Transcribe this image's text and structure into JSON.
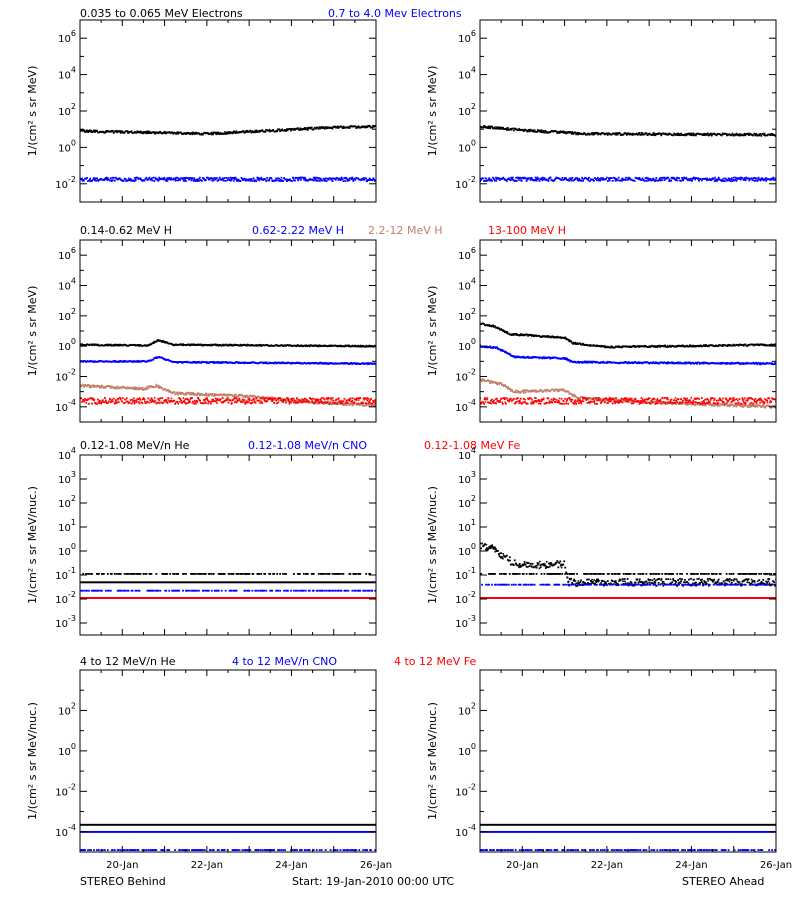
{
  "colors": {
    "black": "#000000",
    "blue": "#0000ff",
    "tan": "#c0806a",
    "red": "#ff0000"
  },
  "rows": [
    {
      "legend": [
        {
          "text": "0.035 to 0.065 MeV Electrons",
          "color": "#000000"
        },
        {
          "text": "0.7 to 4.0 Mev Electrons",
          "color": "#0000ff"
        }
      ],
      "ylabel": "1/(cm² s sr MeV)"
    },
    {
      "legend": [
        {
          "text": "0.14-0.62 MeV H",
          "color": "#000000"
        },
        {
          "text": "0.62-2.22 MeV H",
          "color": "#0000ff"
        },
        {
          "text": "2.2-12 MeV H",
          "color": "#c0806a"
        },
        {
          "text": "13-100 MeV H",
          "color": "#ff0000"
        }
      ],
      "ylabel": "1/(cm² s sr MeV)"
    },
    {
      "legend": [
        {
          "text": "0.12-1.08 MeV/n He",
          "color": "#000000"
        },
        {
          "text": "0.12-1.08 MeV/n CNO",
          "color": "#0000ff"
        },
        {
          "text": "0.12-1.08 MeV Fe",
          "color": "#ff0000"
        }
      ],
      "ylabel": "1/(cm² s sr MeV/nuc.)"
    },
    {
      "legend": [
        {
          "text": "4 to 12 MeV/n He",
          "color": "#000000"
        },
        {
          "text": "4 to 12 MeV/n CNO",
          "color": "#0000ff"
        },
        {
          "text": "4 to 12 MeV Fe",
          "color": "#ff0000"
        }
      ],
      "ylabel": "1/(cm² s sr MeV/nuc.)"
    }
  ],
  "footer": {
    "left": "STEREO Behind",
    "center": "Start: 19-Jan-2010 00:00 UTC",
    "right": "STEREO Ahead"
  },
  "chart_data": [
    {
      "type": "scatter",
      "spacecraft": "STEREO Behind",
      "row": 0,
      "x_days": [
        0,
        7
      ],
      "xticks": [
        "20-Jan",
        "22-Jan",
        "24-Jan",
        "26-Jan"
      ],
      "ylog": true,
      "ylim_exp": [
        -3,
        7
      ],
      "yticks_exp": [
        -2,
        0,
        2,
        4,
        6
      ],
      "series": [
        {
          "name": "0.035 to 0.065 MeV Electrons",
          "color": "#000000",
          "levels": [
            [
              0,
              0.9
            ],
            [
              3,
              0.75
            ],
            [
              6,
              1.1
            ],
            [
              7,
              1.15
            ]
          ],
          "noise": 0.06
        },
        {
          "name": "0.7 to 4.0 Mev Electrons",
          "color": "#0000ff",
          "levels": [
            [
              0,
              -1.75
            ],
            [
              7,
              -1.75
            ]
          ],
          "noise": 0.1
        }
      ]
    },
    {
      "type": "scatter",
      "spacecraft": "STEREO Ahead",
      "row": 0,
      "x_days": [
        0,
        7
      ],
      "xticks": [
        "20-Jan",
        "22-Jan",
        "24-Jan",
        "26-Jan"
      ],
      "ylog": true,
      "ylim_exp": [
        -3,
        7
      ],
      "yticks_exp": [
        -2,
        0,
        2,
        4,
        6
      ],
      "series": [
        {
          "name": "0.035 to 0.065 MeV Electrons",
          "color": "#000000",
          "levels": [
            [
              0,
              1.15
            ],
            [
              1,
              0.95
            ],
            [
              2.5,
              0.75
            ],
            [
              7,
              0.7
            ]
          ],
          "noise": 0.06
        },
        {
          "name": "0.7 to 4.0 Mev Electrons",
          "color": "#0000ff",
          "levels": [
            [
              0,
              -1.75
            ],
            [
              7,
              -1.75
            ]
          ],
          "noise": 0.1
        }
      ]
    },
    {
      "type": "scatter",
      "spacecraft": "STEREO Behind",
      "row": 1,
      "x_days": [
        0,
        7
      ],
      "xticks": [
        "20-Jan",
        "22-Jan",
        "24-Jan",
        "26-Jan"
      ],
      "ylog": true,
      "ylim_exp": [
        -5,
        7
      ],
      "yticks_exp": [
        -4,
        -2,
        0,
        2,
        4,
        6
      ],
      "series": [
        {
          "name": "0.14-0.62 MeV H",
          "color": "#000000",
          "levels": [
            [
              0,
              0.1
            ],
            [
              1.6,
              0.05
            ],
            [
              1.85,
              0.4
            ],
            [
              2.2,
              0.1
            ],
            [
              7,
              0.0
            ]
          ],
          "noise": 0.04
        },
        {
          "name": "0.62-2.22 MeV H",
          "color": "#0000ff",
          "levels": [
            [
              0,
              -1.0
            ],
            [
              1.6,
              -1.0
            ],
            [
              1.85,
              -0.7
            ],
            [
              2.2,
              -1.05
            ],
            [
              7,
              -1.15
            ]
          ],
          "noise": 0.04
        },
        {
          "name": "2.2-12 MeV H",
          "color": "#c0806a",
          "levels": [
            [
              0,
              -2.6
            ],
            [
              1.5,
              -2.8
            ],
            [
              1.8,
              -2.6
            ],
            [
              2.2,
              -3.1
            ],
            [
              4,
              -3.3
            ],
            [
              5.5,
              -3.7
            ],
            [
              7,
              -3.9
            ]
          ],
          "noise": 0.08
        },
        {
          "name": "13-100 MeV H",
          "color": "#ff0000",
          "levels": [
            [
              0,
              -3.6
            ],
            [
              7,
              -3.6
            ]
          ],
          "noise": 0.2
        }
      ]
    },
    {
      "type": "scatter",
      "spacecraft": "STEREO Ahead",
      "row": 1,
      "x_days": [
        0,
        7
      ],
      "xticks": [
        "20-Jan",
        "22-Jan",
        "24-Jan",
        "26-Jan"
      ],
      "ylog": true,
      "ylim_exp": [
        -5,
        7
      ],
      "yticks_exp": [
        -4,
        -2,
        0,
        2,
        4,
        6
      ],
      "series": [
        {
          "name": "0.14-0.62 MeV H",
          "color": "#000000",
          "levels": [
            [
              0,
              1.5
            ],
            [
              0.35,
              1.3
            ],
            [
              0.7,
              0.8
            ],
            [
              1.5,
              0.65
            ],
            [
              2.0,
              0.55
            ],
            [
              2.2,
              0.2
            ],
            [
              3,
              -0.05
            ],
            [
              7,
              0.1
            ]
          ],
          "noise": 0.05
        },
        {
          "name": "0.62-2.22 MeV H",
          "color": "#0000ff",
          "levels": [
            [
              0,
              0.0
            ],
            [
              0.4,
              -0.1
            ],
            [
              0.8,
              -0.7
            ],
            [
              2.0,
              -0.8
            ],
            [
              2.2,
              -1.05
            ],
            [
              7,
              -1.15
            ]
          ],
          "noise": 0.05
        },
        {
          "name": "2.2-12 MeV H",
          "color": "#c0806a",
          "levels": [
            [
              0,
              -2.2
            ],
            [
              0.5,
              -2.5
            ],
            [
              0.8,
              -3.0
            ],
            [
              2.0,
              -2.9
            ],
            [
              2.3,
              -3.4
            ],
            [
              4,
              -3.7
            ],
            [
              7,
              -4.0
            ]
          ],
          "noise": 0.08
        },
        {
          "name": "13-100 MeV H",
          "color": "#ff0000",
          "levels": [
            [
              0,
              -3.6
            ],
            [
              7,
              -3.6
            ]
          ],
          "noise": 0.2
        }
      ]
    },
    {
      "type": "scatter",
      "spacecraft": "STEREO Behind",
      "row": 2,
      "x_days": [
        0,
        7
      ],
      "xticks": [
        "20-Jan",
        "22-Jan",
        "24-Jan",
        "26-Jan"
      ],
      "ylog": true,
      "ylim_exp": [
        -3.5,
        4
      ],
      "yticks_exp": [
        -3,
        -2,
        -1,
        0,
        1,
        2,
        3,
        4
      ],
      "series": [
        {
          "name": "0.12-1.08 MeV/n He",
          "color": "#000000",
          "levels": [
            [
              0,
              -1.3
            ],
            [
              7,
              -1.3
            ]
          ],
          "noise": 0.0,
          "extra_levels": [
            -0.95
          ]
        },
        {
          "name": "0.12-1.08 MeV/n CNO",
          "color": "#0000ff",
          "levels": [
            [
              0,
              -1.95
            ],
            [
              7,
              -1.95
            ]
          ],
          "noise": 0.0,
          "extra_levels": [
            -1.65
          ]
        },
        {
          "name": "0.12-1.08 MeV Fe",
          "color": "#ff0000",
          "levels": [
            [
              0,
              -1.95
            ],
            [
              7,
              -1.95
            ]
          ],
          "noise": 0.0
        }
      ]
    },
    {
      "type": "scatter",
      "spacecraft": "STEREO Ahead",
      "row": 2,
      "x_days": [
        0,
        7
      ],
      "xticks": [
        "20-Jan",
        "22-Jan",
        "24-Jan",
        "26-Jan"
      ],
      "ylog": true,
      "ylim_exp": [
        -3.5,
        4
      ],
      "yticks_exp": [
        -3,
        -2,
        -1,
        0,
        1,
        2,
        3,
        4
      ],
      "series": [
        {
          "name": "0.12-1.08 MeV/n He",
          "color": "#000000",
          "levels": [
            [
              0,
              0.25
            ],
            [
              0.3,
              0.1
            ],
            [
              0.6,
              -0.3
            ],
            [
              0.9,
              -0.6
            ],
            [
              2.0,
              -0.55
            ],
            [
              2.1,
              -1.3
            ],
            [
              7,
              -1.3
            ]
          ],
          "noise": 0.15,
          "extra_levels": [
            -0.95
          ]
        },
        {
          "name": "0.12-1.08 MeV/n CNO",
          "color": "#0000ff",
          "levels": [
            [
              0,
              -1.95
            ],
            [
              7,
              -1.95
            ]
          ],
          "noise": 0.0,
          "extra_levels": [
            -1.4
          ]
        },
        {
          "name": "0.12-1.08 MeV Fe",
          "color": "#ff0000",
          "levels": [
            [
              0,
              -1.95
            ],
            [
              7,
              -1.95
            ]
          ],
          "noise": 0.0
        }
      ]
    },
    {
      "type": "scatter",
      "spacecraft": "STEREO Behind",
      "row": 3,
      "x_days": [
        0,
        7
      ],
      "xticks": [
        "20-Jan",
        "22-Jan",
        "24-Jan",
        "26-Jan"
      ],
      "ylog": true,
      "ylim_exp": [
        -5,
        4
      ],
      "yticks_exp": [
        -4,
        -2,
        0,
        2
      ],
      "series": [
        {
          "name": "4 to 12 MeV/n He",
          "color": "#000000",
          "levels": [
            [
              0,
              -3.65
            ],
            [
              7,
              -3.65
            ]
          ],
          "noise": 0.0
        },
        {
          "name": "4 to 12 MeV/n CNO",
          "color": "#0000ff",
          "levels": [
            [
              0,
              -4.0
            ],
            [
              7,
              -4.0
            ]
          ],
          "noise": 0.0,
          "extra_levels": [
            -4.9
          ]
        },
        {
          "name": "4 to 12 MeV Fe",
          "color": "#ff0000",
          "levels": [],
          "noise": 0.0
        }
      ]
    },
    {
      "type": "scatter",
      "spacecraft": "STEREO Ahead",
      "row": 3,
      "x_days": [
        0,
        7
      ],
      "xticks": [
        "20-Jan",
        "22-Jan",
        "24-Jan",
        "26-Jan"
      ],
      "ylog": true,
      "ylim_exp": [
        -5,
        4
      ],
      "yticks_exp": [
        -4,
        -2,
        0,
        2
      ],
      "series": [
        {
          "name": "4 to 12 MeV/n He",
          "color": "#000000",
          "levels": [
            [
              0,
              -3.65
            ],
            [
              7,
              -3.65
            ]
          ],
          "noise": 0.0
        },
        {
          "name": "4 to 12 MeV/n CNO",
          "color": "#0000ff",
          "levels": [
            [
              0,
              -4.0
            ],
            [
              7,
              -4.0
            ]
          ],
          "noise": 0.0,
          "extra_levels": [
            -4.9
          ]
        },
        {
          "name": "4 to 12 MeV Fe",
          "color": "#ff0000",
          "levels": [],
          "noise": 0.0
        }
      ]
    }
  ]
}
